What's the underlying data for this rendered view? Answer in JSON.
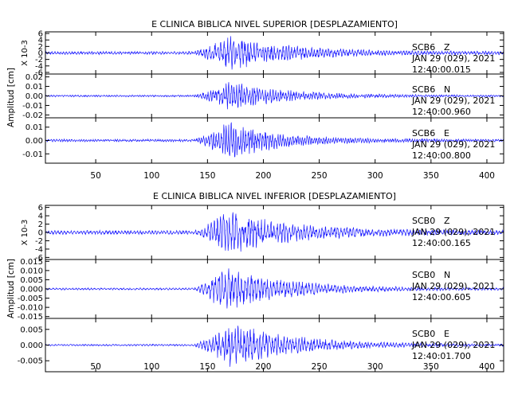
{
  "chart_data": [
    {
      "type": "line",
      "title": "E CLINICA BIBLICA NIVEL SUPERIOR [DESPLAZAMIENTO]",
      "ylabel": "Amplitud [cm]",
      "xlim": [
        5,
        415
      ],
      "x_ticks": [
        "50",
        "100",
        "150",
        "200",
        "250",
        "300",
        "350",
        "400"
      ],
      "x_tick_values": [
        50,
        100,
        150,
        200,
        250,
        300,
        350,
        400
      ],
      "grid": false,
      "traces": [
        {
          "station": "SCB6",
          "component": "Z",
          "date": "JAN 29 (029), 2021",
          "time": "12:40:00.015",
          "multiplier": "X 10-3",
          "y_ticks": [
            "-6",
            "-4",
            "-2",
            "0",
            "2",
            "4",
            "6"
          ],
          "y_tick_values": [
            -6,
            -4,
            -2,
            0,
            2,
            4,
            6
          ],
          "ylim": [
            -6.5,
            6.5
          ],
          "noise": 0.5,
          "peak": 5.8,
          "onset": 136,
          "peak_time": 168,
          "decay": 55,
          "period": 2.6,
          "seed": 11
        },
        {
          "station": "SCB6",
          "component": "N",
          "date": "JAN 29 (029), 2021",
          "time": "12:40:00.960",
          "multiplier": "",
          "y_ticks": [
            "-0.02",
            "-0.01",
            "0.00",
            "0.01",
            "0.02"
          ],
          "y_tick_values": [
            -0.02,
            -0.01,
            0,
            0.01,
            0.02
          ],
          "ylim": [
            -0.023,
            0.023
          ],
          "noise": 0.001,
          "peak": 0.016,
          "onset": 136,
          "peak_time": 170,
          "decay": 50,
          "period": 2.3,
          "seed": 23
        },
        {
          "station": "SCB6",
          "component": "E",
          "date": "JAN 29 (029), 2021",
          "time": "12:40:00.800",
          "multiplier": "",
          "y_ticks": [
            "-0.01",
            "0.00",
            "0.01"
          ],
          "y_tick_values": [
            -0.01,
            0,
            0.01
          ],
          "ylim": [
            -0.017,
            0.017
          ],
          "noise": 0.001,
          "peak": 0.015,
          "onset": 136,
          "peak_time": 168,
          "decay": 48,
          "period": 2.2,
          "seed": 37
        }
      ]
    },
    {
      "type": "line",
      "title": "E CLINICA BIBLICA NIVEL INFERIOR [DESPLAZAMIENTO]",
      "ylabel": "Amplitud [cm]",
      "xlim": [
        5,
        415
      ],
      "x_ticks": [
        "50",
        "100",
        "150",
        "200",
        "250",
        "300",
        "350",
        "400"
      ],
      "x_tick_values": [
        50,
        100,
        150,
        200,
        250,
        300,
        350,
        400
      ],
      "grid": false,
      "traces": [
        {
          "station": "SCB0",
          "component": "Z",
          "date": "JAN 29 (029), 2021",
          "time": "12:40:00.165",
          "multiplier": "X 10-3",
          "y_ticks": [
            "-6",
            "-4",
            "-2",
            "0",
            "2",
            "4",
            "6"
          ],
          "y_tick_values": [
            -6,
            -4,
            -2,
            0,
            2,
            4,
            6
          ],
          "ylim": [
            -6.5,
            6.5
          ],
          "noise": 0.5,
          "peak": 5.6,
          "onset": 136,
          "peak_time": 168,
          "decay": 60,
          "period": 2.8,
          "seed": 41
        },
        {
          "station": "SCB0",
          "component": "N",
          "date": "JAN 29 (029), 2021",
          "time": "12:40:00.605",
          "multiplier": "",
          "y_ticks": [
            "-0.015",
            "-0.010",
            "-0.005",
            "0.000",
            "0.005",
            "0.010",
            "0.015"
          ],
          "y_tick_values": [
            -0.015,
            -0.01,
            -0.005,
            0,
            0.005,
            0.01,
            0.015
          ],
          "ylim": [
            -0.016,
            0.016
          ],
          "noise": 0.0006,
          "peak": 0.013,
          "onset": 136,
          "peak_time": 165,
          "decay": 55,
          "period": 2.9,
          "seed": 53
        },
        {
          "station": "SCB0",
          "component": "E",
          "date": "JAN 29 (029), 2021",
          "time": "12:40:01.700",
          "multiplier": "",
          "y_ticks": [
            "-0.005",
            "0.000",
            "0.005"
          ],
          "y_tick_values": [
            -0.005,
            0,
            0.005
          ],
          "ylim": [
            -0.0085,
            0.0085
          ],
          "noise": 0.0003,
          "peak": 0.0075,
          "onset": 136,
          "peak_time": 170,
          "decay": 58,
          "period": 2.7,
          "seed": 67
        }
      ]
    }
  ]
}
